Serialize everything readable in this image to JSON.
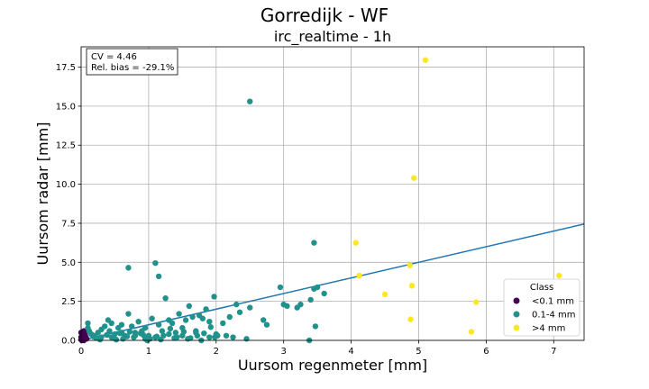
{
  "chart_data": {
    "type": "scatter",
    "title": "Gorredijk - WF",
    "subtitle": "irc_realtime - 1h",
    "xlabel": "Uursom regenmeter [mm]",
    "ylabel": "Uursom radar [mm]",
    "xlim": [
      0,
      7.45
    ],
    "ylim": [
      0,
      18.8
    ],
    "xticks": [
      0,
      1,
      2,
      3,
      4,
      5,
      6,
      7
    ],
    "xtick_labels": [
      "0",
      "1",
      "2",
      "3",
      "4",
      "5",
      "6",
      "7"
    ],
    "yticks": [
      0.0,
      2.5,
      5.0,
      7.5,
      10.0,
      12.5,
      15.0,
      17.5
    ],
    "ytick_labels": [
      "0.0",
      "2.5",
      "5.0",
      "7.5",
      "10.0",
      "12.5",
      "15.0",
      "17.5"
    ],
    "grid": true,
    "annotation_lines": [
      "CV = 4.46",
      "Rel. bias = -29.1%"
    ],
    "fit_line": {
      "x": [
        0,
        7.45
      ],
      "y": [
        0,
        7.45
      ],
      "color": "#1f77b4"
    },
    "legend": {
      "title": "Class",
      "position": "bottom-right",
      "entries": [
        {
          "label": "<0.1 mm",
          "color": "#440154"
        },
        {
          "label": "0.1-4 mm",
          "color": "#21918c"
        },
        {
          "label": ">4 mm",
          "color": "#fde725"
        }
      ]
    },
    "series": [
      {
        "name": "<0.1 mm",
        "color": "#440154",
        "x": [
          0.0,
          0.02,
          0.04,
          0.05,
          0.07,
          0.0,
          0.03,
          0.06,
          0.08,
          0.0,
          0.01,
          0.04
        ],
        "y": [
          0.5,
          0.3,
          0.6,
          0.1,
          0.2,
          0.05,
          0.45,
          0.35,
          0.1,
          0.2,
          0.0,
          0.0
        ]
      },
      {
        "name": "0.1-4 mm",
        "color": "#21918c",
        "x": [
          2.5,
          1.1,
          0.7,
          1.15,
          1.25,
          3.45,
          1.97,
          0.1,
          0.1,
          0.2,
          0.25,
          0.3,
          0.35,
          0.4,
          0.45,
          0.5,
          0.55,
          0.6,
          0.65,
          0.7,
          0.75,
          0.8,
          0.85,
          0.9,
          0.95,
          1.0,
          1.05,
          1.15,
          1.2,
          1.3,
          1.35,
          1.4,
          1.45,
          1.5,
          1.55,
          1.6,
          1.65,
          1.7,
          1.75,
          1.8,
          1.85,
          1.9,
          2.0,
          2.1,
          2.2,
          2.3,
          2.35,
          2.5,
          2.7,
          2.75,
          2.95,
          3.0,
          3.05,
          3.2,
          3.25,
          3.4,
          3.45,
          3.5,
          3.6,
          0.15,
          0.3,
          0.45,
          0.6,
          0.8,
          0.95,
          1.1,
          1.3,
          1.5,
          1.7,
          1.9,
          0.12,
          0.22,
          0.38,
          0.52,
          0.68,
          0.88,
          1.02,
          1.22,
          1.42,
          1.62,
          1.82,
          2.02,
          2.25,
          2.45,
          0.18,
          0.42,
          0.58,
          0.72,
          0.92,
          1.12,
          1.32,
          1.52,
          1.72,
          1.92,
          0.28,
          0.48,
          0.62,
          0.78,
          0.98,
          1.18,
          1.38,
          1.58,
          1.78,
          1.98,
          2.15,
          3.38,
          3.47
        ],
        "y": [
          15.3,
          4.95,
          4.65,
          4.1,
          2.7,
          6.25,
          2.8,
          0.8,
          1.1,
          0.3,
          0.5,
          0.2,
          0.9,
          1.3,
          1.1,
          0.4,
          0.8,
          1.0,
          0.3,
          1.7,
          0.9,
          0.5,
          1.2,
          0.6,
          0.8,
          0.3,
          1.4,
          1.0,
          0.6,
          1.3,
          1.1,
          0.5,
          1.7,
          0.8,
          1.3,
          2.2,
          1.5,
          0.6,
          1.6,
          1.4,
          2.0,
          1.2,
          0.4,
          1.1,
          1.5,
          2.3,
          1.8,
          2.1,
          1.3,
          1.0,
          3.4,
          2.3,
          2.2,
          2.1,
          2.3,
          2.6,
          3.3,
          3.4,
          3.0,
          0.4,
          0.7,
          0.2,
          0.5,
          0.3,
          0.1,
          0.2,
          0.4,
          0.3,
          0.5,
          0.2,
          0.6,
          0.15,
          0.35,
          0.05,
          0.25,
          0.45,
          0.1,
          0.3,
          0.2,
          0.15,
          0.45,
          0.3,
          0.2,
          0.1,
          0.25,
          0.6,
          0.45,
          0.55,
          0.35,
          0.25,
          0.75,
          0.55,
          0.3,
          0.85,
          0.05,
          0.15,
          0.1,
          0.2,
          0.0,
          0.05,
          0.15,
          0.1,
          0.0,
          0.2,
          0.3,
          0.0,
          0.9
        ]
      },
      {
        "name": ">4 mm",
        "color": "#fde725",
        "x": [
          5.1,
          4.93,
          4.07,
          4.12,
          4.87,
          4.9,
          4.5,
          4.88,
          5.85,
          5.78,
          7.08
        ],
        "y": [
          17.95,
          10.4,
          6.25,
          4.15,
          4.8,
          3.5,
          2.95,
          1.35,
          2.45,
          0.55,
          4.15
        ]
      }
    ]
  }
}
